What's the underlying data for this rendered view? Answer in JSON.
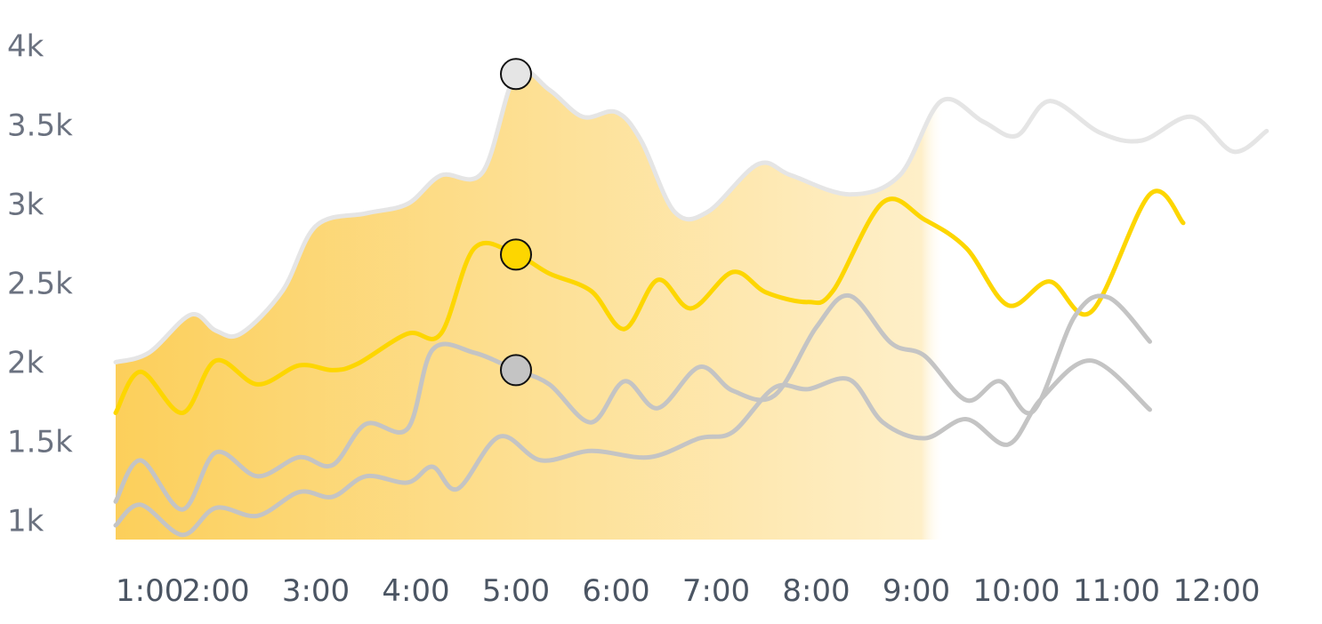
{
  "chart_data": {
    "type": "line",
    "title": "",
    "xlabel": "",
    "ylabel": "",
    "x": [
      "1:00",
      "2:00",
      "3:00",
      "4:00",
      "5:00",
      "6:00",
      "7:00",
      "8:00",
      "9:00",
      "10:00",
      "11:00",
      "12:00"
    ],
    "ylim": [
      880,
      4080
    ],
    "y_ticks": [
      {
        "value": 1000,
        "label": "1k"
      },
      {
        "value": 1500,
        "label": "1.5k"
      },
      {
        "value": 2000,
        "label": "2k"
      },
      {
        "value": 2500,
        "label": "2.5k"
      },
      {
        "value": 3000,
        "label": "3k"
      },
      {
        "value": 3500,
        "label": "3.5k"
      },
      {
        "value": 4000,
        "label": "4k"
      }
    ],
    "grid": false,
    "legend": "none",
    "fill_gradient": {
      "start": "#fbbf24",
      "end": "#ffffff"
    },
    "highlight_x": "5:00",
    "series": [
      {
        "color": "#e5e5e5",
        "filled": true,
        "values": [
          [
            "1:00",
            2000
          ],
          [
            "1:20",
            2060
          ],
          [
            "1:45",
            2300
          ],
          [
            "2:00",
            2200
          ],
          [
            "2:15",
            2180
          ],
          [
            "2:40",
            2450
          ],
          [
            "3:00",
            2860
          ],
          [
            "3:30",
            2940
          ],
          [
            "3:55",
            3000
          ],
          [
            "4:15",
            3180
          ],
          [
            "4:40",
            3200
          ],
          [
            "5:00",
            3820
          ],
          [
            "5:20",
            3720
          ],
          [
            "5:40",
            3550
          ],
          [
            "6:00",
            3580
          ],
          [
            "6:15",
            3400
          ],
          [
            "6:35",
            2950
          ],
          [
            "6:55",
            2950
          ],
          [
            "7:25",
            3250
          ],
          [
            "7:45",
            3180
          ],
          [
            "8:20",
            3060
          ],
          [
            "8:50",
            3180
          ],
          [
            "9:15",
            3650
          ],
          [
            "9:40",
            3520
          ],
          [
            "10:00",
            3430
          ],
          [
            "10:20",
            3650
          ],
          [
            "10:50",
            3450
          ],
          [
            "11:15",
            3400
          ],
          [
            "11:45",
            3550
          ],
          [
            "12:10",
            3330
          ],
          [
            "12:30",
            3460
          ]
        ]
      },
      {
        "color": "#fdd600",
        "filled": false,
        "values": [
          [
            "1:00",
            1680
          ],
          [
            "1:15",
            1940
          ],
          [
            "1:40",
            1680
          ],
          [
            "2:00",
            2010
          ],
          [
            "2:25",
            1860
          ],
          [
            "2:50",
            1980
          ],
          [
            "3:10",
            1950
          ],
          [
            "3:25",
            1990
          ],
          [
            "3:55",
            2180
          ],
          [
            "4:15",
            2180
          ],
          [
            "4:35",
            2720
          ],
          [
            "5:00",
            2680
          ],
          [
            "5:20",
            2560
          ],
          [
            "5:45",
            2450
          ],
          [
            "6:05",
            2210
          ],
          [
            "6:25",
            2520
          ],
          [
            "6:45",
            2340
          ],
          [
            "7:10",
            2570
          ],
          [
            "7:30",
            2440
          ],
          [
            "7:55",
            2380
          ],
          [
            "8:10",
            2450
          ],
          [
            "8:40",
            3010
          ],
          [
            "9:05",
            2900
          ],
          [
            "9:30",
            2720
          ],
          [
            "9:55",
            2360
          ],
          [
            "10:20",
            2510
          ],
          [
            "10:45",
            2320
          ],
          [
            "11:20",
            3060
          ],
          [
            "11:40",
            2880
          ]
        ]
      },
      {
        "color": "#c4c4c4",
        "filled": false,
        "values": [
          [
            "1:00",
            1120
          ],
          [
            "1:15",
            1380
          ],
          [
            "1:40",
            1070
          ],
          [
            "2:00",
            1430
          ],
          [
            "2:25",
            1280
          ],
          [
            "2:50",
            1400
          ],
          [
            "3:10",
            1350
          ],
          [
            "3:30",
            1610
          ],
          [
            "3:55",
            1580
          ],
          [
            "4:10",
            2080
          ],
          [
            "4:35",
            2060
          ],
          [
            "5:00",
            1950
          ],
          [
            "5:20",
            1860
          ],
          [
            "5:45",
            1620
          ],
          [
            "6:05",
            1880
          ],
          [
            "6:25",
            1710
          ],
          [
            "6:50",
            1970
          ],
          [
            "7:10",
            1820
          ],
          [
            "7:35",
            1790
          ],
          [
            "8:00",
            2220
          ],
          [
            "8:20",
            2420
          ],
          [
            "8:45",
            2120
          ],
          [
            "9:05",
            2040
          ],
          [
            "9:30",
            1760
          ],
          [
            "9:50",
            1880
          ],
          [
            "10:10",
            1690
          ],
          [
            "10:35",
            2290
          ],
          [
            "10:55",
            2410
          ],
          [
            "11:20",
            2130
          ]
        ]
      },
      {
        "color": "#c4c4c4",
        "filled": false,
        "values": [
          [
            "1:00",
            970
          ],
          [
            "1:15",
            1100
          ],
          [
            "1:40",
            910
          ],
          [
            "2:00",
            1080
          ],
          [
            "2:25",
            1030
          ],
          [
            "2:50",
            1180
          ],
          [
            "3:10",
            1150
          ],
          [
            "3:30",
            1280
          ],
          [
            "3:55",
            1240
          ],
          [
            "4:10",
            1340
          ],
          [
            "4:25",
            1200
          ],
          [
            "4:50",
            1530
          ],
          [
            "5:15",
            1380
          ],
          [
            "5:45",
            1440
          ],
          [
            "6:20",
            1400
          ],
          [
            "6:50",
            1520
          ],
          [
            "7:10",
            1560
          ],
          [
            "7:35",
            1840
          ],
          [
            "7:55",
            1830
          ],
          [
            "8:20",
            1890
          ],
          [
            "8:40",
            1620
          ],
          [
            "9:05",
            1520
          ],
          [
            "9:30",
            1640
          ],
          [
            "9:55",
            1480
          ],
          [
            "10:15",
            1770
          ],
          [
            "10:45",
            2010
          ],
          [
            "11:20",
            1700
          ]
        ]
      }
    ]
  }
}
